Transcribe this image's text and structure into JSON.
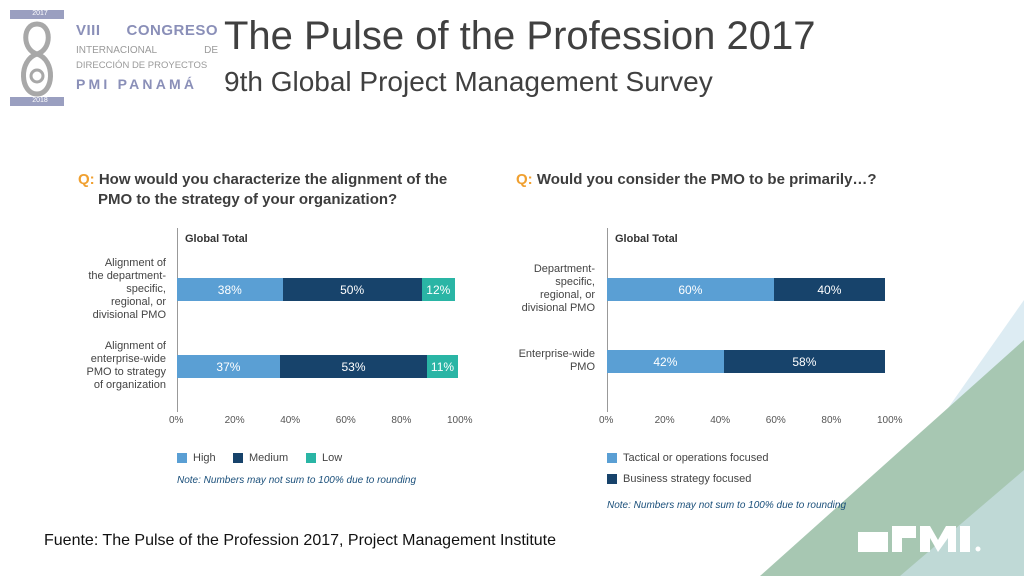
{
  "header": {
    "title": "The Pulse of the Profession 2017",
    "subtitle": "9th Global Project Management Survey"
  },
  "congreso": {
    "roman": "VIII",
    "word": "CONGRESO",
    "intl_a": "INTERNACIONAL",
    "intl_b": "DE",
    "direccion": "DIRECCIÓN DE PROYECTOS",
    "pmi": "PMI PANAMÁ",
    "year_top": "2017",
    "year_bottom": "2018"
  },
  "colors": {
    "high": "#5a9fd4",
    "medium": "#17436b",
    "low": "#2ab5a5",
    "tactical": "#5a9fd4",
    "business": "#17436b",
    "deco_blue": "#cfe4ee",
    "deco_green": "#a7c7b2"
  },
  "chart_data": [
    {
      "type": "bar",
      "orientation": "horizontal-stacked",
      "question_prefix": "Q:",
      "title_line1": "How would you characterize the alignment of the",
      "title_line2": "PMO to the strategy of your organization?",
      "group_label": "Global Total",
      "categories": [
        "Alignment of the department-specific, regional, or divisional PMO",
        "Alignment of enterprise-wide PMO to strategy of organization"
      ],
      "category_lines": [
        [
          "Alignment of",
          "the department-",
          "specific,",
          "regional, or",
          "divisional PMO"
        ],
        [
          "Alignment of",
          "enterprise-wide",
          "PMO to strategy",
          "of organization"
        ]
      ],
      "series": [
        {
          "name": "High",
          "values": [
            38,
            37
          ],
          "labels": [
            "38%",
            "37%"
          ]
        },
        {
          "name": "Medium",
          "values": [
            50,
            53
          ],
          "labels": [
            "50%",
            "53%"
          ]
        },
        {
          "name": "Low",
          "values": [
            12,
            11
          ],
          "labels": [
            "12%",
            "11%"
          ]
        }
      ],
      "xlim": [
        0,
        100
      ],
      "ticks": [
        "0%",
        "20%",
        "40%",
        "60%",
        "80%",
        "100%"
      ],
      "legend_position": "bottom",
      "note": "Note: Numbers may not sum to 100% due to rounding"
    },
    {
      "type": "bar",
      "orientation": "horizontal-stacked",
      "question_prefix": "Q:",
      "title_line1": "Would you consider the PMO to be primarily…?",
      "title_line2": "",
      "group_label": "Global Total",
      "categories": [
        "Department-specific, regional, or divisional PMO",
        "Enterprise-wide PMO"
      ],
      "category_lines": [
        [
          "Department-",
          "specific,",
          "regional, or",
          "divisional PMO"
        ],
        [
          "Enterprise-wide",
          "PMO"
        ]
      ],
      "series": [
        {
          "name": "Tactical or operations focused",
          "values": [
            60,
            42
          ],
          "labels": [
            "60%",
            "42%"
          ]
        },
        {
          "name": "Business strategy focused",
          "values": [
            40,
            58
          ],
          "labels": [
            "40%",
            "58%"
          ]
        }
      ],
      "xlim": [
        0,
        100
      ],
      "ticks": [
        "0%",
        "20%",
        "40%",
        "60%",
        "80%",
        "100%"
      ],
      "legend_position": "bottom",
      "note": "Note: Numbers may not sum to 100% due to rounding"
    }
  ],
  "footer": {
    "source": "Fuente: The Pulse of the Profession 2017, Project Management Institute"
  }
}
